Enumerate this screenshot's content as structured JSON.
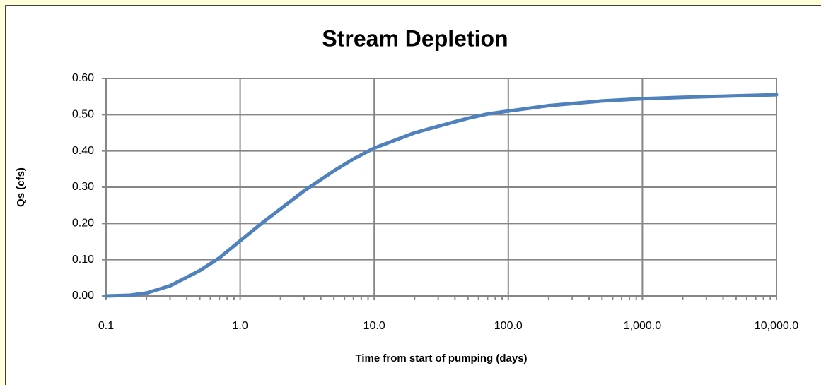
{
  "chart_data": {
    "type": "line",
    "title": "Stream Depletion",
    "x_label": "Time from start of pumping (days)",
    "y_label": "Qs (cfs)",
    "x": [
      0.1,
      0.15,
      0.2,
      0.3,
      0.5,
      0.7,
      1,
      1.5,
      2,
      3,
      5,
      7,
      10,
      20,
      30,
      50,
      70,
      100,
      200,
      500,
      1000,
      2000,
      5000,
      10000
    ],
    "values": [
      0.0,
      0.002,
      0.008,
      0.028,
      0.07,
      0.105,
      0.152,
      0.205,
      0.24,
      0.29,
      0.345,
      0.378,
      0.408,
      0.45,
      0.468,
      0.49,
      0.502,
      0.51,
      0.525,
      0.538,
      0.544,
      0.548,
      0.552,
      0.555
    ],
    "color": "#4f81bd",
    "x_log": true,
    "grid": true,
    "xlim": [
      0.1,
      10000
    ],
    "xticks": [
      0.1,
      {
        "value": 1,
        "label": "1.0"
      },
      {
        "value": 10,
        "label": "10.0"
      },
      {
        "value": 100,
        "label": "100.0"
      },
      {
        "value": 1000,
        "label": "1,000.0"
      },
      {
        "value": 10000,
        "label": "10,000.0"
      }
    ],
    "minor_xticks": [
      0.2,
      0.3,
      0.4,
      0.5,
      0.6,
      0.7,
      0.8,
      0.9,
      2,
      3,
      4,
      5,
      6,
      7,
      8,
      9,
      20,
      30,
      40,
      50,
      60,
      70,
      80,
      90,
      200,
      300,
      400,
      500,
      600,
      700,
      800,
      900,
      2000,
      3000,
      4000,
      5000,
      6000,
      7000,
      8000,
      9000
    ],
    "ylim": [
      0,
      0.6
    ],
    "yticks": [
      {
        "value": 0,
        "label": "0.00"
      },
      {
        "value": 0.1,
        "label": "0.10"
      },
      {
        "value": 0.2,
        "label": "0.20"
      },
      {
        "value": 0.3,
        "label": "0.30"
      },
      {
        "value": 0.4,
        "label": "0.40"
      },
      {
        "value": 0.5,
        "label": "0.50"
      },
      {
        "value": 0.6,
        "label": "0.60"
      }
    ]
  }
}
